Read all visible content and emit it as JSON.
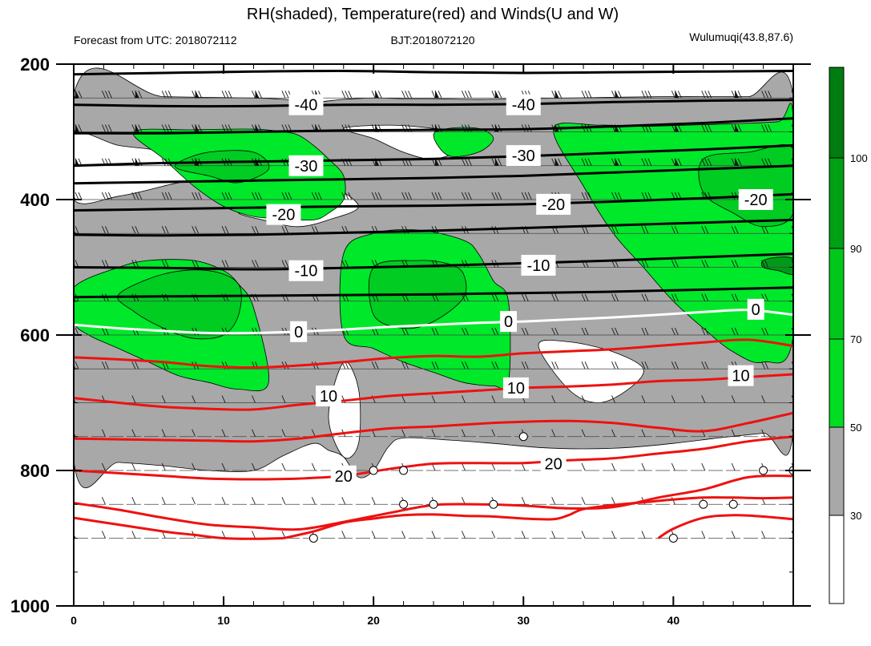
{
  "chart_data": {
    "type": "contour",
    "title": "RH(shaded), Temperature(red) and Winds(U and W)",
    "header_left": "Forecast from UTC: 2018072112",
    "header_center": "BJT:2018072120",
    "header_right": "Wulumuqi(43.8,87.6)",
    "x_ticks": [
      "0",
      "10",
      "20",
      "30",
      "40"
    ],
    "x_tick_values": [
      0,
      10,
      20,
      30,
      40
    ],
    "xlim": [
      0,
      48
    ],
    "y_ticks": [
      "200",
      "400",
      "600",
      "800",
      "1000"
    ],
    "y_tick_values": [
      200,
      400,
      600,
      800,
      1000
    ],
    "ylim": [
      200,
      1000
    ],
    "colorbar": {
      "levels": [
        "30",
        "50",
        "70",
        "90",
        "100"
      ],
      "level_values": [
        30,
        50,
        70,
        90,
        100
      ],
      "colors": [
        "#ffffff",
        "#a8a8a8",
        "#00dd22",
        "#00c81a",
        "#00a014",
        "#007c10"
      ]
    },
    "isotherm_labels": [
      {
        "text": "-40",
        "x": 15.5,
        "p": 260
      },
      {
        "text": "-40",
        "x": 30.0,
        "p": 260
      },
      {
        "text": "-30",
        "x": 15.5,
        "p": 350
      },
      {
        "text": "-30",
        "x": 30.0,
        "p": 335
      },
      {
        "text": "-20",
        "x": 14.0,
        "p": 422
      },
      {
        "text": "-20",
        "x": 32.0,
        "p": 407
      },
      {
        "text": "-20",
        "x": 45.5,
        "p": 400
      },
      {
        "text": "-10",
        "x": 15.5,
        "p": 505
      },
      {
        "text": "-10",
        "x": 31.0,
        "p": 497
      },
      {
        "text": "0",
        "x": 15.0,
        "p": 595
      },
      {
        "text": "0",
        "x": 29.0,
        "p": 580
      },
      {
        "text": "0",
        "x": 45.5,
        "p": 562
      },
      {
        "text": "10",
        "x": 17.0,
        "p": 690
      },
      {
        "text": "10",
        "x": 29.5,
        "p": 678
      },
      {
        "text": "10",
        "x": 44.5,
        "p": 660
      },
      {
        "text": "20",
        "x": 18.0,
        "p": 808
      },
      {
        "text": "20",
        "x": 32.0,
        "p": 790
      }
    ],
    "isotherms_black": [
      {
        "x": [
          0,
          6,
          12,
          18,
          24,
          30,
          36,
          42,
          48
        ],
        "p": [
          215,
          213,
          211,
          210,
          212,
          213,
          212,
          211,
          210
        ]
      },
      {
        "x": [
          0,
          6,
          12,
          18,
          24,
          30,
          36,
          42,
          48
        ],
        "p": [
          260,
          262,
          262,
          260,
          260,
          259,
          256,
          254,
          253
        ]
      },
      {
        "x": [
          0,
          6,
          12,
          18,
          24,
          30,
          36,
          42,
          48
        ],
        "p": [
          302,
          302,
          300,
          298,
          297,
          296,
          292,
          287,
          280
        ]
      },
      {
        "x": [
          0,
          6,
          12,
          18,
          24,
          30,
          36,
          42,
          48
        ],
        "p": [
          350,
          346,
          344,
          342,
          340,
          336,
          331,
          326,
          320
        ]
      },
      {
        "x": [
          0,
          6,
          12,
          18,
          24,
          30,
          36,
          42,
          48
        ],
        "p": [
          376,
          374,
          372,
          370,
          368,
          365,
          360,
          355,
          350
        ]
      },
      {
        "x": [
          0,
          6,
          12,
          18,
          24,
          30,
          36,
          42,
          48
        ],
        "p": [
          416,
          414,
          412,
          410,
          409,
          407,
          403,
          398,
          392
        ]
      },
      {
        "x": [
          0,
          6,
          12,
          18,
          24,
          30,
          36,
          42,
          48
        ],
        "p": [
          452,
          453,
          452,
          449,
          446,
          442,
          438,
          434,
          430
        ]
      },
      {
        "x": [
          0,
          6,
          12,
          18,
          24,
          30,
          36,
          42,
          48
        ],
        "p": [
          500,
          501,
          503,
          501,
          498,
          494,
          490,
          485,
          480
        ]
      },
      {
        "x": [
          0,
          6,
          12,
          18,
          24,
          30,
          36,
          42,
          48
        ],
        "p": [
          544,
          543,
          542,
          541,
          540,
          538,
          536,
          533,
          530
        ]
      }
    ],
    "isotherm_zero": {
      "x": [
        0,
        3,
        6,
        9,
        12,
        15,
        18,
        21,
        24,
        27,
        30,
        33,
        36,
        39,
        42,
        45,
        48
      ],
      "p": [
        585,
        590,
        594,
        597,
        597,
        595,
        592,
        588,
        585,
        582,
        580,
        577,
        574,
        570,
        566,
        563,
        570
      ]
    },
    "isotherms_red": [
      {
        "x": [
          0,
          3,
          6,
          9,
          12,
          15,
          18,
          21,
          24,
          27,
          30,
          33,
          36,
          39,
          42,
          45,
          48
        ],
        "p": [
          633,
          636,
          640,
          646,
          648,
          645,
          640,
          634,
          631,
          632,
          627,
          624,
          621,
          616,
          611,
          607,
          616
        ]
      },
      {
        "x": [
          0,
          3,
          6,
          9,
          12,
          15,
          18,
          21,
          24,
          27,
          30,
          33,
          36,
          39,
          42,
          45,
          48
        ],
        "p": [
          693,
          700,
          706,
          709,
          710,
          703,
          697,
          690,
          686,
          682,
          678,
          676,
          673,
          668,
          666,
          662,
          658
        ]
      },
      {
        "x": [
          0,
          3,
          6,
          9,
          12,
          15,
          18,
          21,
          24,
          27,
          30,
          33,
          36,
          39,
          42,
          45,
          48
        ],
        "p": [
          753,
          754,
          755,
          756,
          757,
          753,
          745,
          738,
          735,
          731,
          728,
          727,
          730,
          737,
          742,
          730,
          715
        ]
      },
      {
        "x": [
          0,
          3,
          6,
          9,
          12,
          15,
          18,
          21,
          24,
          27,
          30,
          33,
          36,
          39,
          42,
          45,
          48
        ],
        "p": [
          800,
          804,
          808,
          812,
          813,
          812,
          808,
          798,
          790,
          789,
          789,
          785,
          782,
          775,
          768,
          757,
          750
        ]
      },
      {
        "x": [
          0,
          3,
          6,
          9,
          12,
          15,
          18,
          21,
          24,
          27,
          30,
          33,
          36,
          39,
          42,
          45,
          48
        ],
        "p": [
          848,
          858,
          870,
          880,
          884,
          887,
          876,
          863,
          851,
          850,
          852,
          856,
          854,
          840,
          828,
          810,
          808
        ]
      },
      {
        "x": [
          0,
          3,
          6,
          8,
          10,
          12,
          14
        ],
        "p": [
          870,
          880,
          890,
          895,
          900,
          901,
          900
        ]
      },
      {
        "x": [
          14,
          16,
          18,
          20,
          22,
          24,
          26,
          28,
          30,
          32,
          33,
          34,
          36,
          38,
          40,
          42,
          44,
          46,
          48
        ],
        "p": [
          900,
          890,
          877,
          871,
          866,
          865,
          867,
          868,
          871,
          872,
          866,
          857,
          851,
          847,
          843,
          840,
          840,
          841,
          840
        ]
      },
      {
        "x": [
          39,
          40,
          42,
          44,
          46,
          48
        ],
        "p": [
          900,
          886,
          870,
          866,
          868,
          872
        ]
      }
    ],
    "rh_regions": [
      {
        "level": 40,
        "x": [
          0,
          6,
          12,
          14,
          16,
          18,
          20,
          22,
          24,
          26,
          28,
          30,
          33,
          36,
          39,
          42,
          45,
          48,
          48,
          46,
          43,
          40,
          37,
          34,
          31,
          28,
          25,
          22,
          21,
          20,
          19,
          18,
          17,
          16,
          14,
          12,
          9,
          6,
          3,
          0
        ],
        "p": [
          245,
          248,
          250,
          252,
          256,
          252,
          250,
          251,
          251,
          252,
          252,
          251,
          250,
          249,
          248,
          248,
          248,
          248,
          740,
          745,
          752,
          760,
          766,
          768,
          766,
          760,
          755,
          752,
          765,
          800,
          810,
          780,
          770,
          760,
          778,
          800,
          800,
          793,
          788,
          785
        ]
      },
      {
        "level": 20,
        "x": [
          0,
          3,
          6,
          9,
          6,
          3,
          0
        ],
        "p": [
          305,
          320,
          330,
          360,
          380,
          395,
          400
        ]
      },
      {
        "level": 20,
        "x": [
          12,
          15,
          17,
          19,
          17,
          15,
          13,
          11
        ],
        "p": [
          410,
          395,
          380,
          410,
          430,
          440,
          432,
          420
        ]
      },
      {
        "level": 20,
        "x": [
          18,
          21,
          24,
          27,
          26,
          24,
          22,
          20
        ],
        "p": [
          295,
          290,
          295,
          305,
          325,
          340,
          330,
          310
        ]
      },
      {
        "level": 20,
        "x": [
          31,
          33,
          36,
          38,
          37,
          35,
          33
        ],
        "p": [
          615,
          610,
          625,
          650,
          680,
          700,
          680
        ]
      },
      {
        "level": 20,
        "x": [
          17,
          18,
          19,
          19,
          18
        ],
        "p": [
          720,
          640,
          680,
          760,
          780
        ]
      },
      {
        "level": 60,
        "x": [
          4,
          8,
          12,
          14,
          15,
          16,
          17,
          18,
          18,
          17,
          16,
          14,
          12,
          10,
          8,
          6
        ],
        "p": [
          300,
          297,
          296,
          300,
          305,
          320,
          340,
          365,
          400,
          420,
          430,
          428,
          425,
          410,
          380,
          340
        ]
      },
      {
        "level": 60,
        "x": [
          0,
          3,
          5,
          8,
          10,
          11,
          12,
          13,
          11,
          9,
          7,
          5,
          3,
          1,
          0
        ],
        "p": [
          530,
          500,
          490,
          490,
          505,
          525,
          560,
          670,
          680,
          670,
          660,
          640,
          620,
          600,
          580
        ]
      },
      {
        "level": 60,
        "x": [
          18,
          20,
          23,
          26,
          27,
          28,
          29,
          29,
          28,
          26,
          24,
          22,
          20,
          18
        ],
        "p": [
          480,
          450,
          445,
          460,
          480,
          520,
          550,
          670,
          675,
          670,
          655,
          640,
          620,
          600
        ]
      },
      {
        "level": 60,
        "x": [
          24,
          25,
          27,
          28,
          27,
          25
        ],
        "p": [
          305,
          295,
          295,
          310,
          330,
          335
        ]
      },
      {
        "level": 60,
        "x": [
          32,
          35,
          38,
          41,
          44,
          47,
          48,
          48,
          46,
          44,
          42,
          40,
          38,
          36,
          34
        ],
        "p": [
          295,
          290,
          292,
          290,
          288,
          285,
          280,
          600,
          640,
          625,
          590,
          550,
          500,
          450,
          380
        ]
      },
      {
        "level": 70,
        "x": [
          7,
          9,
          12,
          13,
          11,
          9,
          7
        ],
        "p": [
          345,
          330,
          330,
          355,
          375,
          365,
          355
        ]
      },
      {
        "level": 70,
        "x": [
          3,
          6,
          9,
          11,
          11,
          10,
          8,
          6,
          4
        ],
        "p": [
          540,
          510,
          505,
          525,
          570,
          600,
          605,
          590,
          565
        ]
      },
      {
        "level": 70,
        "x": [
          20,
          23,
          25,
          26,
          26,
          24,
          22,
          20
        ],
        "p": [
          500,
          490,
          495,
          510,
          545,
          580,
          590,
          570
        ]
      },
      {
        "level": 70,
        "x": [
          42,
          45,
          48,
          48,
          46,
          44,
          42
        ],
        "p": [
          340,
          330,
          325,
          420,
          440,
          420,
          390
        ]
      },
      {
        "level": 90,
        "x": [
          46,
          47,
          48,
          48,
          47,
          46
        ],
        "p": [
          490,
          485,
          488,
          510,
          505,
          500
        ]
      }
    ],
    "wind_levels": [
      250,
      300,
      350,
      400,
      450,
      500,
      550,
      600,
      650,
      700,
      750,
      800,
      850,
      900
    ],
    "calm_markers": [
      {
        "x": 16,
        "p": 900
      },
      {
        "x": 20,
        "p": 800
      },
      {
        "x": 22,
        "p": 800
      },
      {
        "x": 22,
        "p": 850
      },
      {
        "x": 24,
        "p": 850
      },
      {
        "x": 28,
        "p": 850
      },
      {
        "x": 30,
        "p": 750
      },
      {
        "x": 40,
        "p": 900
      },
      {
        "x": 42,
        "p": 850
      },
      {
        "x": 44,
        "p": 850
      },
      {
        "x": 46,
        "p": 800
      },
      {
        "x": 48,
        "p": 800
      }
    ]
  }
}
